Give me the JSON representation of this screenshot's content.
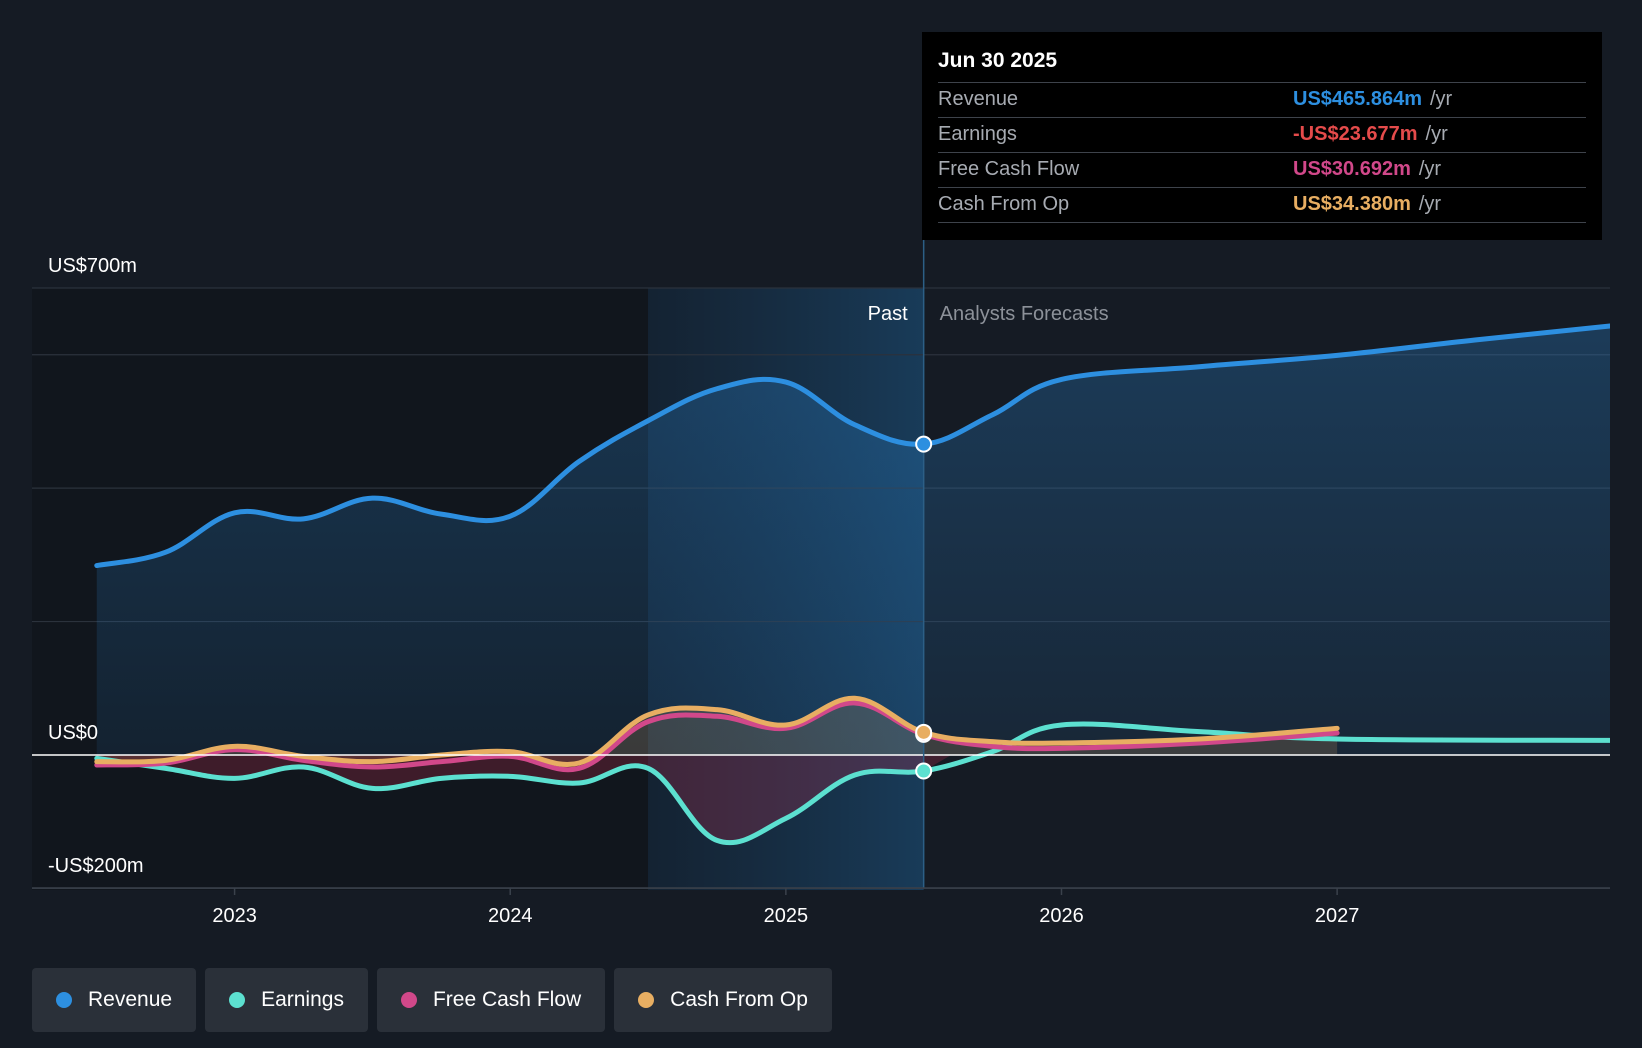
{
  "colors": {
    "background": "#151b24",
    "revenue": "#2d8fe0",
    "earnings": "#5ce0d0",
    "free_cash_flow": "#d1488a",
    "cash_from_op": "#e8ae62",
    "earnings_negative": "#e54b4b"
  },
  "tooltip": {
    "date": "Jun 30 2025",
    "rows": [
      {
        "name": "Revenue",
        "value": "US$465.864m",
        "unit": "/yr",
        "color": "#2d8fe0"
      },
      {
        "name": "Earnings",
        "value": "-US$23.677m",
        "unit": "/yr",
        "color": "#e54b4b"
      },
      {
        "name": "Free Cash Flow",
        "value": "US$30.692m",
        "unit": "/yr",
        "color": "#d1488a"
      },
      {
        "name": "Cash From Op",
        "value": "US$34.380m",
        "unit": "/yr",
        "color": "#e8ae62"
      }
    ]
  },
  "legend": [
    {
      "label": "Revenue",
      "color": "#2d8fe0"
    },
    {
      "label": "Earnings",
      "color": "#5ce0d0"
    },
    {
      "label": "Free Cash Flow",
      "color": "#d1488a"
    },
    {
      "label": "Cash From Op",
      "color": "#e8ae62"
    }
  ],
  "chart_data": {
    "type": "area",
    "ylabel_top": "US$700m",
    "ylabel_zero": "US$0",
    "ylabel_bottom": "-US$200m",
    "ylim": [
      -200,
      700
    ],
    "xlim": [
      2022.57,
      2027.99
    ],
    "x_ticks": [
      {
        "value": 2023,
        "label": "2023"
      },
      {
        "value": 2024,
        "label": "2024"
      },
      {
        "value": 2025,
        "label": "2025"
      },
      {
        "value": 2026,
        "label": "2026"
      },
      {
        "value": 2027,
        "label": "2027"
      }
    ],
    "highlight_start": 2024.5,
    "past_end": 2025.5,
    "past_label": "Past",
    "forecast_label": "Analysts Forecasts",
    "grid": true,
    "series": [
      {
        "name": "Revenue",
        "key": "revenue",
        "points": [
          [
            2022.5,
            284
          ],
          [
            2022.75,
            304
          ],
          [
            2023.0,
            363
          ],
          [
            2023.25,
            354
          ],
          [
            2023.5,
            385
          ],
          [
            2023.75,
            361
          ],
          [
            2024.0,
            358
          ],
          [
            2024.25,
            440
          ],
          [
            2024.5,
            501
          ],
          [
            2024.75,
            549
          ],
          [
            2025.0,
            559
          ],
          [
            2025.25,
            495
          ],
          [
            2025.5,
            466
          ],
          [
            2025.75,
            510
          ],
          [
            2026.0,
            563
          ],
          [
            2026.5,
            582
          ],
          [
            2027.0,
            599
          ],
          [
            2027.5,
            622
          ],
          [
            2027.99,
            643
          ]
        ]
      },
      {
        "name": "Earnings",
        "key": "earnings",
        "points": [
          [
            2022.5,
            -5
          ],
          [
            2022.75,
            -20
          ],
          [
            2023.0,
            -35
          ],
          [
            2023.25,
            -18
          ],
          [
            2023.5,
            -50
          ],
          [
            2023.75,
            -35
          ],
          [
            2024.0,
            -32
          ],
          [
            2024.25,
            -42
          ],
          [
            2024.5,
            -20
          ],
          [
            2024.75,
            -128
          ],
          [
            2025.0,
            -95
          ],
          [
            2025.25,
            -30
          ],
          [
            2025.5,
            -24
          ],
          [
            2025.75,
            5
          ],
          [
            2026.0,
            45
          ],
          [
            2026.5,
            35
          ],
          [
            2027.0,
            24
          ],
          [
            2027.99,
            22
          ]
        ]
      },
      {
        "name": "Free Cash Flow",
        "key": "free_cash_flow",
        "points": [
          [
            2022.5,
            -15
          ],
          [
            2022.75,
            -12
          ],
          [
            2023.0,
            8
          ],
          [
            2023.25,
            -8
          ],
          [
            2023.5,
            -18
          ],
          [
            2023.75,
            -10
          ],
          [
            2024.0,
            -2
          ],
          [
            2024.25,
            -20
          ],
          [
            2024.5,
            50
          ],
          [
            2024.75,
            58
          ],
          [
            2025.0,
            40
          ],
          [
            2025.25,
            78
          ],
          [
            2025.5,
            31
          ],
          [
            2025.75,
            13
          ],
          [
            2026.0,
            10
          ],
          [
            2026.5,
            18
          ],
          [
            2027.0,
            33
          ]
        ]
      },
      {
        "name": "Cash From Op",
        "key": "cash_from_op",
        "points": [
          [
            2022.5,
            -10
          ],
          [
            2022.75,
            -8
          ],
          [
            2023.0,
            13
          ],
          [
            2023.25,
            -2
          ],
          [
            2023.5,
            -10
          ],
          [
            2023.75,
            0
          ],
          [
            2024.0,
            5
          ],
          [
            2024.25,
            -12
          ],
          [
            2024.5,
            60
          ],
          [
            2024.75,
            68
          ],
          [
            2025.0,
            45
          ],
          [
            2025.25,
            85
          ],
          [
            2025.5,
            34
          ],
          [
            2025.75,
            20
          ],
          [
            2026.0,
            18
          ],
          [
            2026.5,
            24
          ],
          [
            2027.0,
            40
          ]
        ]
      }
    ],
    "markers": [
      {
        "key": "revenue",
        "x": 2025.5,
        "y": 466
      },
      {
        "key": "earnings",
        "x": 2025.5,
        "y": -24
      },
      {
        "key": "free_cash_flow",
        "x": 2025.5,
        "y": 31
      },
      {
        "key": "cash_from_op",
        "x": 2025.5,
        "y": 34
      }
    ]
  }
}
